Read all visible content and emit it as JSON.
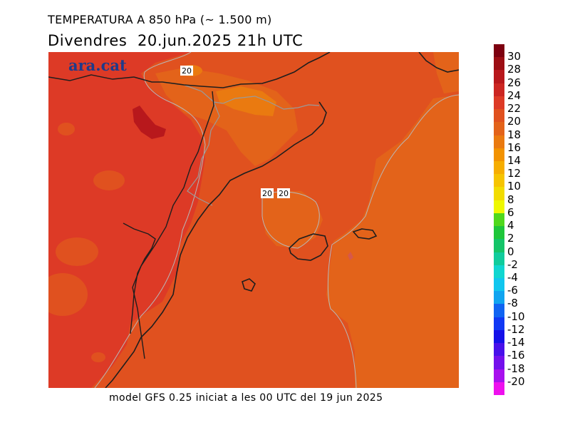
{
  "title_line1": "TEMPERATURA A 850 hPa (~ 1.500 m)",
  "title_line2": "Divendres  20.jun.2025 21h UTC",
  "watermark": "ara.cat",
  "footer": "model GFS 0.25 iniciat a les 00 UTC del 19 jun 2025",
  "contour_labels": [
    "20",
    "20",
    "20"
  ],
  "legend": {
    "labels": [
      "30",
      "28",
      "26",
      "24",
      "22",
      "20",
      "18",
      "16",
      "14",
      "12",
      "10",
      "8",
      "6",
      "4",
      "2",
      "0",
      "-2",
      "-4",
      "-6",
      "-8",
      "-10",
      "-12",
      "-14",
      "-16",
      "-18",
      "-20"
    ],
    "colors": [
      "#7d0010",
      "#9c0e14",
      "#b8181c",
      "#cc2622",
      "#dd3a26",
      "#e0511f",
      "#e3631a",
      "#ea7a10",
      "#f29200",
      "#f6ad00",
      "#f6c400",
      "#f2dc00",
      "#eef800",
      "#4fd81c",
      "#1ec63a",
      "#14c468",
      "#10cc9c",
      "#10d6d0",
      "#10c6ee",
      "#10a4f0",
      "#1064f2",
      "#1038f4",
      "#1410e8",
      "#4810ea",
      "#7410ec",
      "#a810ee",
      "#ee10ee"
    ]
  }
}
